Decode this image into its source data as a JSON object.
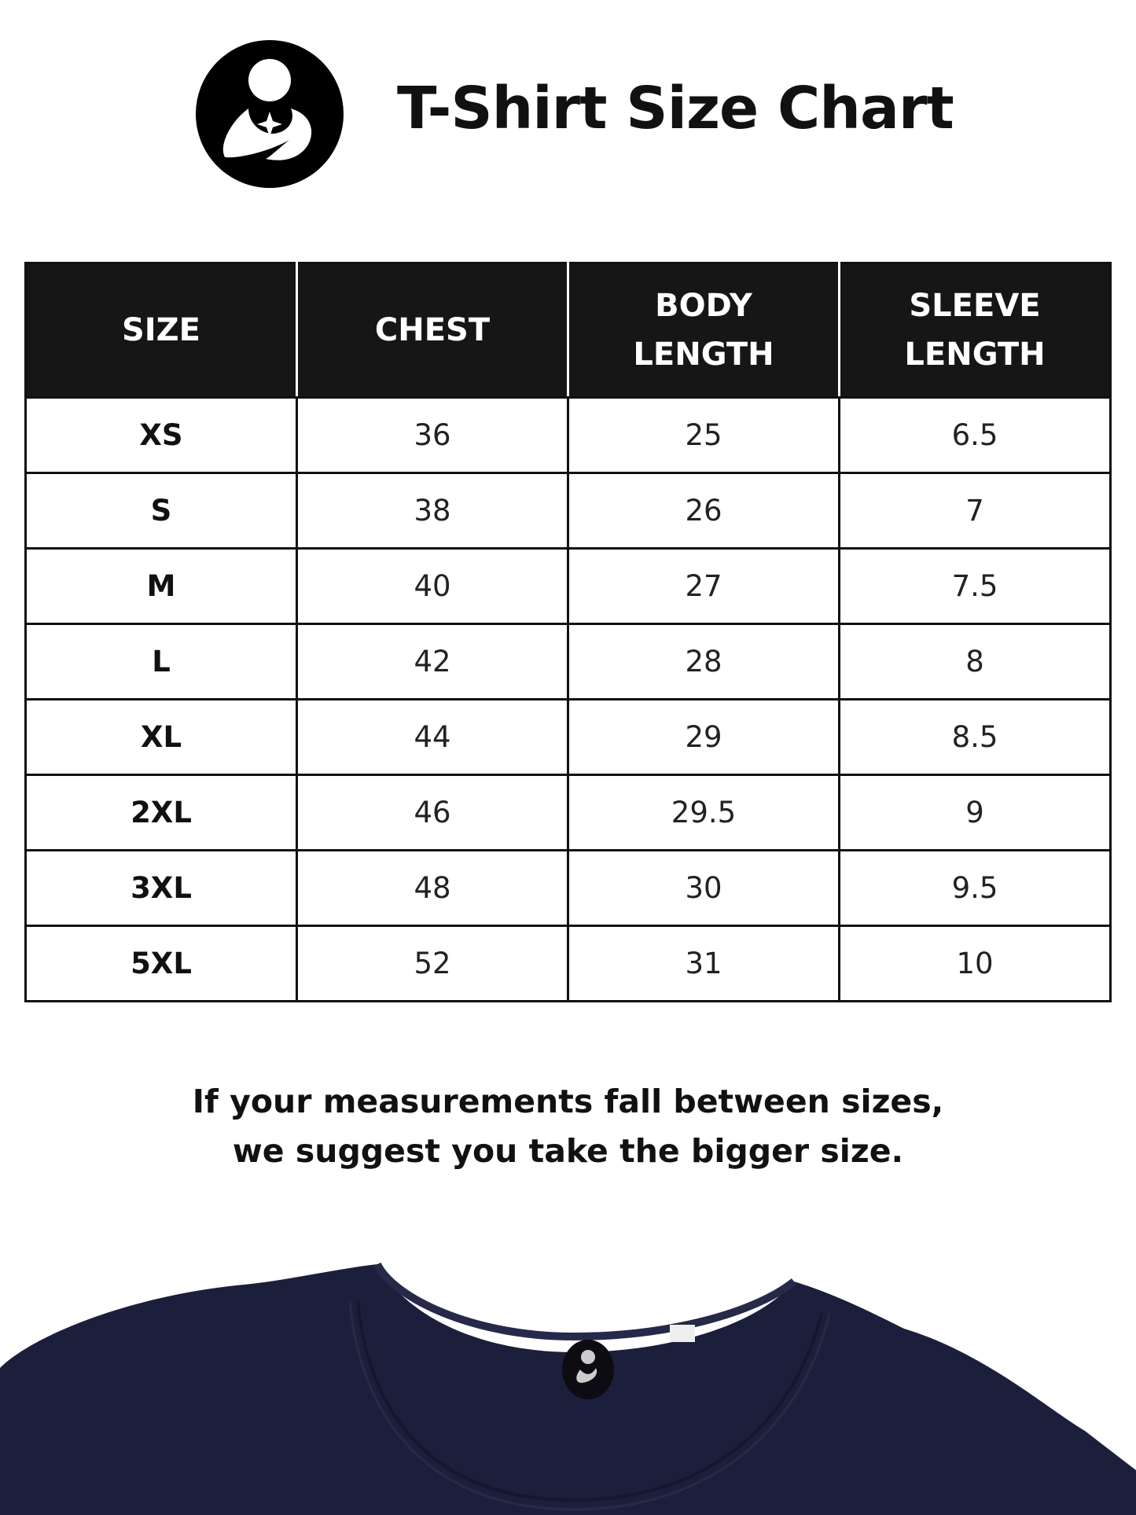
{
  "header": {
    "title": "T-Shirt Size Chart",
    "logo_icon": "mother-child-icon"
  },
  "table": {
    "columns": [
      [
        "SIZE"
      ],
      [
        "CHEST"
      ],
      [
        "BODY",
        "LENGTH"
      ],
      [
        "SLEEVE",
        "LENGTH"
      ]
    ],
    "rows": [
      [
        "XS",
        "36",
        "25",
        "6.5"
      ],
      [
        "S",
        "38",
        "26",
        "7"
      ],
      [
        "M",
        "40",
        "27",
        "7.5"
      ],
      [
        "L",
        "42",
        "28",
        "8"
      ],
      [
        "XL",
        "44",
        "29",
        "8.5"
      ],
      [
        "2XL",
        "46",
        "29.5",
        "9"
      ],
      [
        "3XL",
        "48",
        "30",
        "9.5"
      ],
      [
        "5XL",
        "52",
        "31",
        "10"
      ]
    ]
  },
  "note": {
    "line1": "If your measurements fall between sizes,",
    "line2": "we suggest you take the bigger size."
  },
  "colors": {
    "header_bg": "#161616",
    "shirt": "#1c1f3b"
  }
}
